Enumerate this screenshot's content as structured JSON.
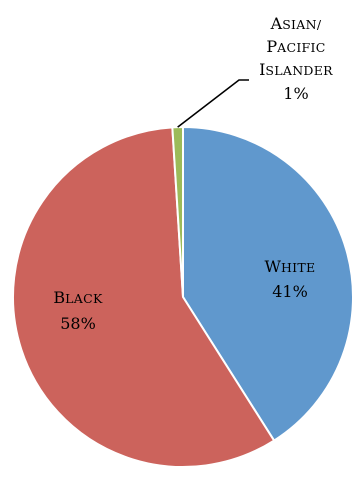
{
  "chart_data": {
    "type": "pie",
    "title": "",
    "slices": [
      {
        "label": "White",
        "value": 41,
        "display": "41%",
        "color": "#6098CD"
      },
      {
        "label": "Black",
        "value": 58,
        "display": "58%",
        "color": "#CC635C"
      },
      {
        "label": "Asian/ Pacific Islander",
        "value": 1,
        "display": "1%",
        "color": "#9CBB59"
      }
    ],
    "legend": "none",
    "labels": "inside slices, small-caps; smallest slice labeled outside with leader line"
  }
}
